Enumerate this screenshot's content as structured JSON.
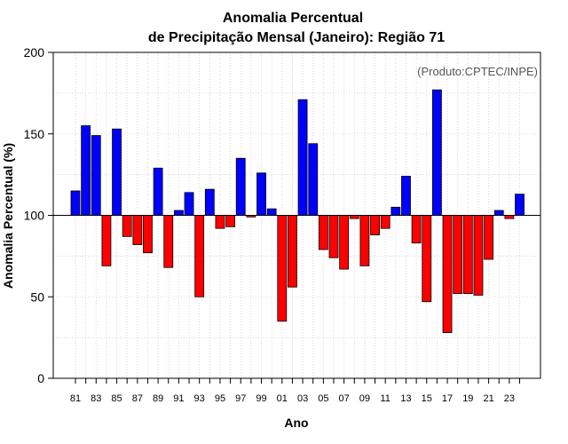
{
  "chart_data": {
    "type": "bar",
    "title": "Anomalia Percentual",
    "subtitle": "de Precipitação Mensal (Janeiro): Região 71",
    "xlabel": "Ano",
    "ylabel": "Anomalia Percentual (%)",
    "annotation": "(Produto:CPTEC/INPE)",
    "ylim": [
      0,
      200
    ],
    "yticks": [
      0,
      50,
      100,
      150,
      200
    ],
    "baseline": 100,
    "grid": true,
    "colors": {
      "above": "#0000ff",
      "below": "#ff0000",
      "edge": "#000000"
    },
    "categories": [
      "81",
      "82",
      "83",
      "84",
      "85",
      "86",
      "87",
      "88",
      "89",
      "90",
      "91",
      "92",
      "93",
      "94",
      "95",
      "96",
      "97",
      "98",
      "99",
      "00",
      "01",
      "02",
      "03",
      "04",
      "05",
      "06",
      "07",
      "08",
      "09",
      "10",
      "11",
      "12",
      "13",
      "14",
      "15",
      "16",
      "17",
      "18",
      "19",
      "20",
      "21",
      "22",
      "23",
      "24"
    ],
    "xtick_labels": [
      "81",
      "83",
      "85",
      "87",
      "89",
      "91",
      "93",
      "95",
      "97",
      "99",
      "01",
      "03",
      "05",
      "07",
      "09",
      "11",
      "13",
      "15",
      "17",
      "19",
      "21",
      "23"
    ],
    "values": [
      115,
      155,
      149,
      69,
      153,
      87,
      82,
      77,
      129,
      68,
      103,
      114,
      50,
      116,
      92,
      93,
      135,
      99,
      126,
      104,
      35,
      56,
      171,
      144,
      79,
      74,
      67,
      98,
      69,
      88,
      92,
      105,
      124,
      83,
      47,
      177,
      28,
      52,
      52,
      51,
      73,
      103,
      98,
      113
    ]
  }
}
